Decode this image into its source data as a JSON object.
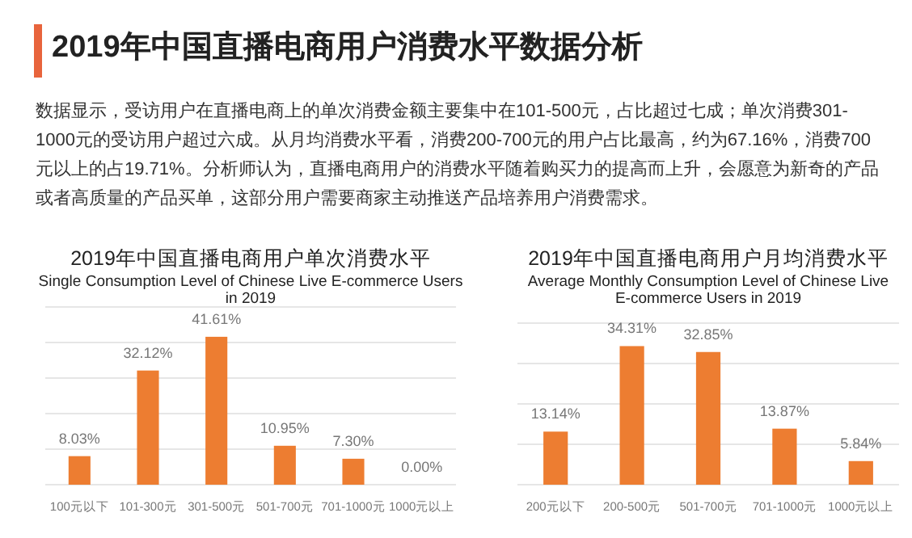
{
  "chart_data": [
    {
      "type": "other",
      "title": "2019年中国直播电商用户消费水平数据分析",
      "annotations": [
        "数据显示，受访用户在直播电商上的单次消费金额主要集中在101-500元，占比超过七成；单次消费301-1000元的受访用户超过六成。从月均消费水平看，消费200-700元的用户占比最高，约为67.16%，消费700元以上的占19.71%。分析师认为，直播电商用户的消费水平随着购买力的提高而上升，会愿意为新奇的产品或者高质量的产品买单，这部分用户需要商家主动推送产品培养用户消费需求。"
      ]
    },
    {
      "type": "bar",
      "title": "2019年中国直播电商用户单次消费水平",
      "subtitle": "Single Consumption Level of Chinese Live E-commerce Users in 2019",
      "categories": [
        "100元以下",
        "101-300元",
        "301-500元",
        "501-700元",
        "701-1000元",
        "1000元以上"
      ],
      "values": [
        8.03,
        32.12,
        41.61,
        10.95,
        7.3,
        0.0
      ],
      "value_labels": [
        "8.03%",
        "32.12%",
        "41.61%",
        "10.95%",
        "7.30%",
        "0.00%"
      ],
      "color": "#ed7d31",
      "ylim": [
        0,
        50
      ],
      "yticks": [
        {
          "value": 0,
          "label": null
        },
        {
          "value": 10,
          "label": null
        },
        {
          "value": 20,
          "label": null
        },
        {
          "value": 30,
          "label": null
        },
        {
          "value": 40,
          "label": null
        },
        {
          "value": 50,
          "label": null
        }
      ],
      "grid": "y",
      "tick_labels": "x"
    },
    {
      "type": "bar",
      "title": "2019年中国直播电商用户月均消费水平",
      "subtitle": "Average Monthly Consumption Level of Chinese Live E-commerce Users in 2019",
      "categories": [
        "200元以下",
        "200-500元",
        "501-700元",
        "701-1000元",
        "1000元以上"
      ],
      "values": [
        13.14,
        34.31,
        32.85,
        13.87,
        5.84
      ],
      "value_labels": [
        "13.14%",
        "34.31%",
        "32.85%",
        "13.87%",
        "5.84%"
      ],
      "color": "#ed7d31",
      "ylim": [
        0,
        40
      ],
      "yticks": [
        {
          "value": 0,
          "label": null
        },
        {
          "value": 10,
          "label": null
        },
        {
          "value": 20,
          "label": null
        },
        {
          "value": 30,
          "label": null
        },
        {
          "value": 40,
          "label": null
        }
      ],
      "grid": "y",
      "tick_labels": "x"
    }
  ]
}
